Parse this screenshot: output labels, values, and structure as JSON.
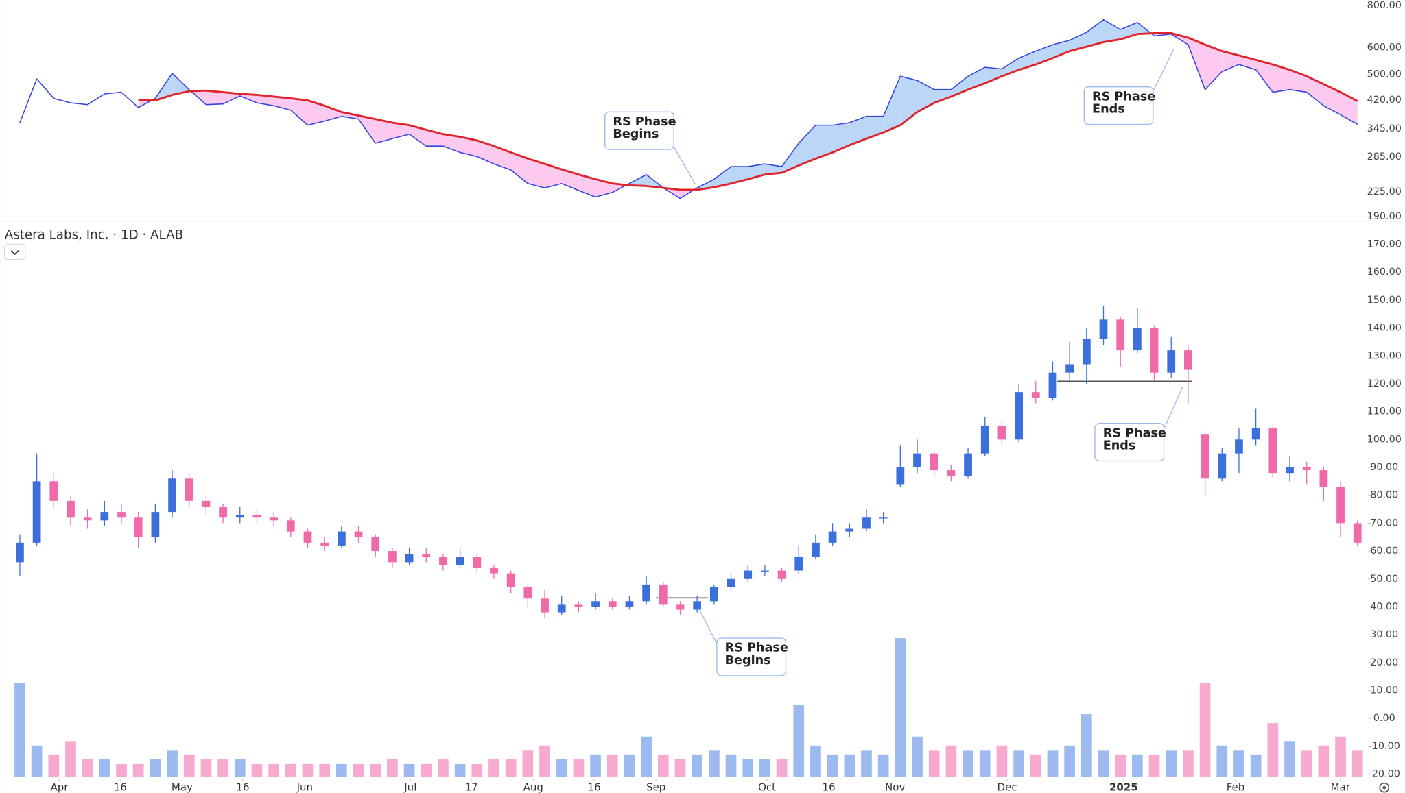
{
  "chart_data": [
    {
      "type": "line",
      "log_scale": true,
      "ylim": [
        190,
        800
      ],
      "yticks": [
        {
          "value": 800,
          "label": "800.00"
        },
        {
          "value": 600,
          "label": "600.00"
        },
        {
          "value": 500,
          "label": "500.00"
        },
        {
          "value": 420,
          "label": "420.00"
        },
        {
          "value": 345,
          "label": "345.00"
        },
        {
          "value": 285,
          "label": "285.00"
        },
        {
          "value": 225,
          "label": "225.00"
        },
        {
          "value": 190,
          "label": "190.00"
        }
      ],
      "fill_colors": {
        "above": "#bcd6f8",
        "below": "#fcc9ef"
      },
      "series": [
        {
          "name": "RS Line",
          "color": "#3446e0",
          "values": [
            360,
            485,
            425,
            412,
            407,
            438,
            443,
            399,
            425,
            504,
            451,
            407,
            409,
            432,
            412,
            404,
            392,
            354,
            364,
            376,
            369,
            313,
            323,
            333,
            307,
            307,
            294,
            286,
            272,
            261,
            238,
            231,
            238,
            227,
            217,
            224,
            238,
            253,
            231,
            215,
            231,
            245,
            267,
            267,
            272,
            267,
            313,
            354,
            354,
            360,
            376,
            376,
            494,
            480,
            451,
            451,
            494,
            525,
            519,
            559,
            586,
            612,
            631,
            666,
            726,
            679,
            712,
            650,
            658,
            612,
            451,
            510,
            535,
            516,
            443,
            451,
            443,
            404,
            380,
            356
          ]
        },
        {
          "name": "RS MA",
          "color": "#e0222a",
          "values": [
            null,
            null,
            null,
            null,
            null,
            null,
            null,
            419,
            419,
            435,
            446,
            448,
            443,
            438,
            435,
            430,
            425,
            419,
            404,
            387,
            378,
            369,
            360,
            354,
            343,
            333,
            327,
            319,
            307,
            294,
            282,
            272,
            262,
            253,
            245,
            238,
            235,
            234,
            231,
            228,
            228,
            232,
            238,
            245,
            253,
            256,
            269,
            282,
            294,
            309,
            323,
            337,
            354,
            387,
            412,
            430,
            451,
            471,
            494,
            516,
            535,
            559,
            586,
            604,
            623,
            635,
            658,
            662,
            662,
            642,
            612,
            586,
            569,
            552,
            535,
            516,
            494,
            468,
            443,
            417
          ]
        }
      ],
      "annotations": [
        {
          "lines": [
            "RS Phase",
            "Begins"
          ]
        },
        {
          "lines": [
            "RS Phase",
            "Ends"
          ]
        }
      ]
    },
    {
      "type": "candlestick",
      "title": "Astera Labs, Inc. · 1D · ALAB",
      "ylim": [
        -20,
        170
      ],
      "yticks": [
        {
          "value": 170,
          "label": "170.00"
        },
        {
          "value": 160,
          "label": "160.00"
        },
        {
          "value": 150,
          "label": "150.00"
        },
        {
          "value": 140,
          "label": "140.00"
        },
        {
          "value": 130,
          "label": "130.00"
        },
        {
          "value": 120,
          "label": "120.00"
        },
        {
          "value": 110,
          "label": "110.00"
        },
        {
          "value": 100,
          "label": "100.00"
        },
        {
          "value": 90,
          "label": "90.00"
        },
        {
          "value": 80,
          "label": "80.00"
        },
        {
          "value": 70,
          "label": "70.00"
        },
        {
          "value": 60,
          "label": "60.00"
        },
        {
          "value": 50,
          "label": "50.00"
        },
        {
          "value": 40,
          "label": "40.00"
        },
        {
          "value": 30,
          "label": "30.00"
        },
        {
          "value": 20,
          "label": "20.00"
        },
        {
          "value": 10,
          "label": "10.00"
        },
        {
          "value": 0,
          "label": "0.00"
        },
        {
          "value": -10,
          "label": "-10.00"
        },
        {
          "value": -20,
          "label": "-20.00"
        }
      ],
      "xticks": [
        {
          "value": 2.33,
          "label": "Apr"
        },
        {
          "value": 5.93,
          "label": "16"
        },
        {
          "value": 9.58,
          "label": "May"
        },
        {
          "value": 13.17,
          "label": "16"
        },
        {
          "value": 16.83,
          "label": "Jun"
        },
        {
          "value": 23.07,
          "label": "Jul"
        },
        {
          "value": 26.67,
          "label": "17"
        },
        {
          "value": 30.32,
          "label": "Aug"
        },
        {
          "value": 33.92,
          "label": "16"
        },
        {
          "value": 37.57,
          "label": "Sep"
        },
        {
          "value": 44.13,
          "label": "Oct"
        },
        {
          "value": 47.78,
          "label": "16"
        },
        {
          "value": 51.69,
          "label": "Nov"
        },
        {
          "value": 58.31,
          "label": "Dec"
        },
        {
          "value": 65.19,
          "label": "2025"
        },
        {
          "value": 71.8,
          "label": "Feb"
        },
        {
          "value": 77.99,
          "label": "Mar"
        }
      ],
      "up_color": "#3a6fdc",
      "down_color": "#f06aaa",
      "volume_up_color": "#9dbaf0",
      "volume_down_color": "#f7a9d0",
      "open": [
        56,
        63,
        85,
        78,
        72,
        71,
        74,
        72,
        65,
        74,
        86,
        78,
        76,
        72,
        73,
        72,
        71,
        67,
        63,
        62,
        67,
        65,
        60,
        56,
        59,
        58,
        55,
        58,
        54,
        52,
        47,
        43,
        38,
        41,
        40,
        42,
        40,
        42,
        48,
        41,
        39,
        42,
        47,
        50,
        53,
        53,
        53,
        58,
        63,
        67,
        68,
        72,
        84,
        90,
        95,
        89,
        87,
        95,
        105,
        100,
        117,
        115,
        124,
        127,
        136,
        143,
        132,
        140,
        124,
        132,
        102,
        86,
        95,
        100,
        104,
        88,
        90,
        89,
        83,
        70
      ],
      "high": [
        66,
        95,
        88,
        80,
        75,
        78,
        77,
        74,
        77,
        89,
        88,
        80,
        77,
        76,
        75,
        74,
        72,
        68,
        65,
        69,
        69,
        66,
        61,
        61,
        61,
        59,
        61,
        59,
        55,
        53,
        48,
        46,
        44,
        42,
        45,
        43,
        44,
        51,
        49,
        42,
        44,
        48,
        52,
        55,
        55,
        54,
        62,
        66,
        70,
        70,
        75,
        74,
        98,
        100,
        96,
        91,
        97,
        108,
        107,
        120,
        121,
        128,
        135,
        140,
        148,
        144,
        147,
        141,
        137,
        134,
        103,
        97,
        104,
        111,
        105,
        94,
        92,
        90,
        85,
        71
      ],
      "low": [
        51,
        62,
        75,
        69,
        68,
        69,
        70,
        61,
        63,
        72,
        76,
        73,
        70,
        70,
        70,
        69,
        65,
        61,
        60,
        61,
        63,
        58,
        54,
        55,
        56,
        53,
        54,
        52,
        50,
        45,
        40,
        36,
        37,
        38,
        39,
        39,
        39,
        41,
        40,
        37,
        38,
        41,
        46,
        49,
        51,
        49,
        52,
        57,
        62,
        65,
        67,
        70,
        83,
        88,
        87,
        85,
        86,
        94,
        98,
        99,
        113,
        114,
        121,
        120,
        134,
        126,
        131,
        121,
        122,
        113,
        80,
        85,
        88,
        98,
        86,
        85,
        84,
        78,
        65,
        62
      ],
      "close": [
        63,
        85,
        78,
        72,
        71,
        74,
        72,
        65,
        74,
        86,
        78,
        76,
        72,
        73,
        72,
        71,
        67,
        63,
        62,
        67,
        65,
        60,
        56,
        59,
        58,
        55,
        58,
        54,
        52,
        47,
        43,
        38,
        41,
        40,
        42,
        40,
        42,
        48,
        41,
        39,
        42,
        47,
        50,
        53,
        53,
        50,
        58,
        63,
        67,
        68,
        72,
        72,
        90,
        95,
        89,
        87,
        95,
        105,
        100,
        117,
        115,
        124,
        127,
        136,
        143,
        132,
        140,
        124,
        132,
        125,
        86,
        95,
        100,
        104,
        88,
        90,
        89,
        83,
        70,
        63
      ],
      "volume_lim": [
        0,
        40
      ],
      "volume": [
        21,
        7,
        5,
        8,
        4,
        4,
        3,
        3,
        4,
        6,
        5,
        4,
        4,
        4,
        3,
        3,
        3,
        3,
        3,
        3,
        3,
        3,
        4,
        3,
        3,
        4,
        3,
        3,
        4,
        4,
        6,
        7,
        4,
        4,
        5,
        5,
        5,
        9,
        5,
        4,
        5,
        6,
        5,
        4,
        4,
        4,
        16,
        7,
        5,
        5,
        6,
        5,
        31,
        9,
        6,
        7,
        6,
        6,
        7,
        6,
        5,
        6,
        7,
        14,
        6,
        5,
        5,
        5,
        6,
        6,
        21,
        7,
        6,
        5,
        12,
        8,
        6,
        7,
        9,
        6
      ],
      "annotations": [
        {
          "lines": [
            "RS Phase",
            "Ends"
          ]
        },
        {
          "lines": [
            "RS Phase",
            "Begins"
          ]
        }
      ]
    }
  ]
}
